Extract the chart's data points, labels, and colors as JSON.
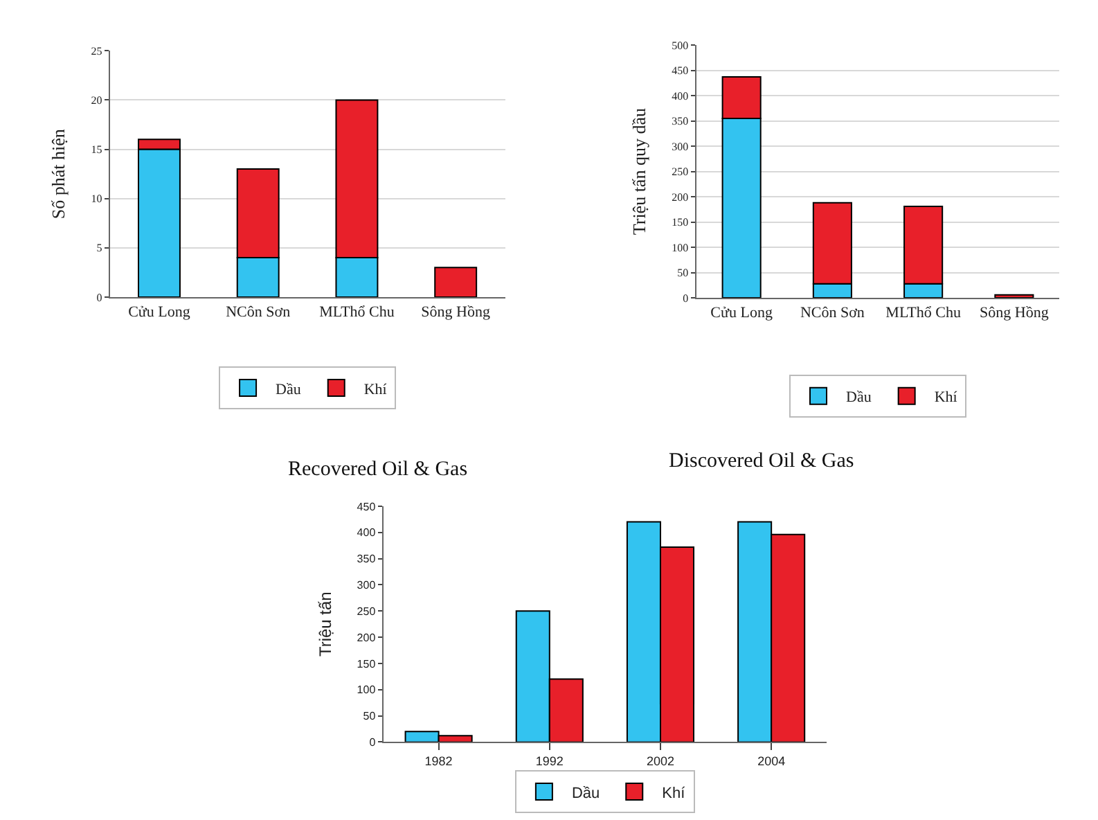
{
  "chart_data": [
    {
      "type": "bar",
      "title": "Recovered Oil & Gas",
      "ylabel": "Số phát hiện",
      "categories": [
        "Cửu Long",
        "NCôn Sơn",
        "MLThổ Chu",
        "Sông Hồng"
      ],
      "stacked": true,
      "series": [
        {
          "name": "Dầu",
          "color": "#33c3f0",
          "values": [
            15,
            4,
            4,
            0
          ]
        },
        {
          "name": "Khí",
          "color": "#e8202a",
          "values": [
            1,
            9,
            16,
            3
          ]
        }
      ],
      "ylim": [
        0,
        25
      ],
      "yticks": [
        0,
        5,
        10,
        15,
        20,
        25
      ],
      "grid": "y",
      "legend": "bottom"
    },
    {
      "type": "bar",
      "title": "Discovered Oil & Gas",
      "ylabel": "Triệu tấn quy dầu",
      "categories": [
        "Cửu Long",
        "NCôn Sơn",
        "MLThổ Chu",
        "Sông Hồng"
      ],
      "stacked": true,
      "series": [
        {
          "name": "Dầu",
          "color": "#33c3f0",
          "values": [
            355,
            28,
            28,
            0
          ]
        },
        {
          "name": "Khí",
          "color": "#e8202a",
          "values": [
            82,
            160,
            153,
            6
          ]
        }
      ],
      "ylim": [
        0,
        500
      ],
      "yticks": [
        0,
        50,
        100,
        150,
        200,
        250,
        300,
        350,
        400,
        450,
        500
      ],
      "grid": "y",
      "legend": "bottom"
    },
    {
      "type": "bar",
      "ylabel": "Triệu tấn",
      "categories": [
        "1982",
        "1992",
        "2002",
        "2004"
      ],
      "series": [
        {
          "name": "Dầu",
          "color": "#33c3f0",
          "values": [
            20,
            250,
            420,
            420
          ]
        },
        {
          "name": "Khí",
          "color": "#e8202a",
          "values": [
            12,
            120,
            372,
            396
          ]
        }
      ],
      "ylim": [
        0,
        450
      ],
      "yticks": [
        0,
        50,
        100,
        150,
        200,
        250,
        300,
        350,
        400,
        450
      ],
      "legend": "bottom"
    }
  ]
}
